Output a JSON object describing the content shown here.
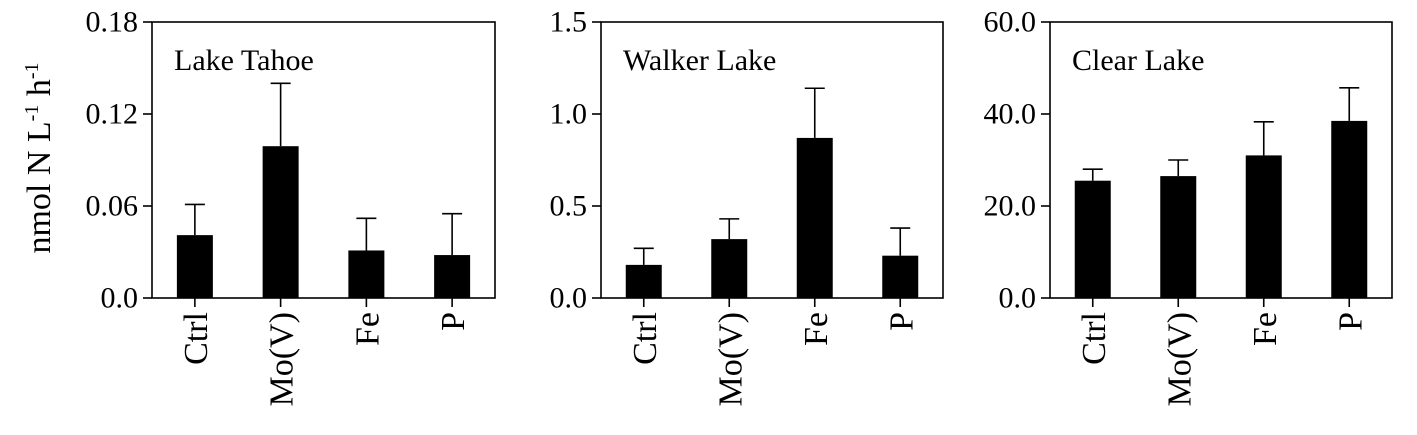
{
  "figure": {
    "y_axis_label_main": "nmol N L",
    "y_axis_label_sup1": "-1",
    "y_axis_label_mid": " h",
    "y_axis_label_sup2": "-1"
  },
  "chart_data": [
    {
      "type": "bar",
      "title": "Lake Tahoe",
      "categories": [
        "Ctrl",
        "Mo(V)",
        "Fe",
        "P"
      ],
      "values": [
        0.041,
        0.099,
        0.031,
        0.028
      ],
      "errors": [
        0.02,
        0.041,
        0.021,
        0.027
      ],
      "ylim": [
        0,
        0.18
      ],
      "yticks": [
        0.0,
        0.06,
        0.12,
        0.18
      ],
      "ytick_labels": [
        "0.0",
        "0.06",
        "0.12",
        "0.18"
      ],
      "ylabel": "nmol N L-1 h-1",
      "xlabel": "",
      "color": "#000000"
    },
    {
      "type": "bar",
      "title": "Walker Lake",
      "categories": [
        "Ctrl",
        "Mo(V)",
        "Fe",
        "P"
      ],
      "values": [
        0.18,
        0.32,
        0.87,
        0.23
      ],
      "errors": [
        0.09,
        0.11,
        0.27,
        0.15
      ],
      "ylim": [
        0,
        1.5
      ],
      "yticks": [
        0.0,
        0.5,
        1.0,
        1.5
      ],
      "ytick_labels": [
        "0.0",
        "0.5",
        "1.0",
        "1.5"
      ],
      "ylabel": "",
      "xlabel": "",
      "color": "#000000"
    },
    {
      "type": "bar",
      "title": "Clear Lake",
      "categories": [
        "Ctrl",
        "Mo(V)",
        "Fe",
        "P"
      ],
      "values": [
        25.5,
        26.5,
        31.0,
        38.5
      ],
      "errors": [
        2.5,
        3.5,
        7.3,
        7.2
      ],
      "ylim": [
        0,
        60
      ],
      "yticks": [
        0.0,
        20.0,
        40.0,
        60.0
      ],
      "ytick_labels": [
        "0.0",
        "20.0",
        "40.0",
        "60.0"
      ],
      "ylabel": "",
      "xlabel": "",
      "color": "#000000"
    }
  ]
}
